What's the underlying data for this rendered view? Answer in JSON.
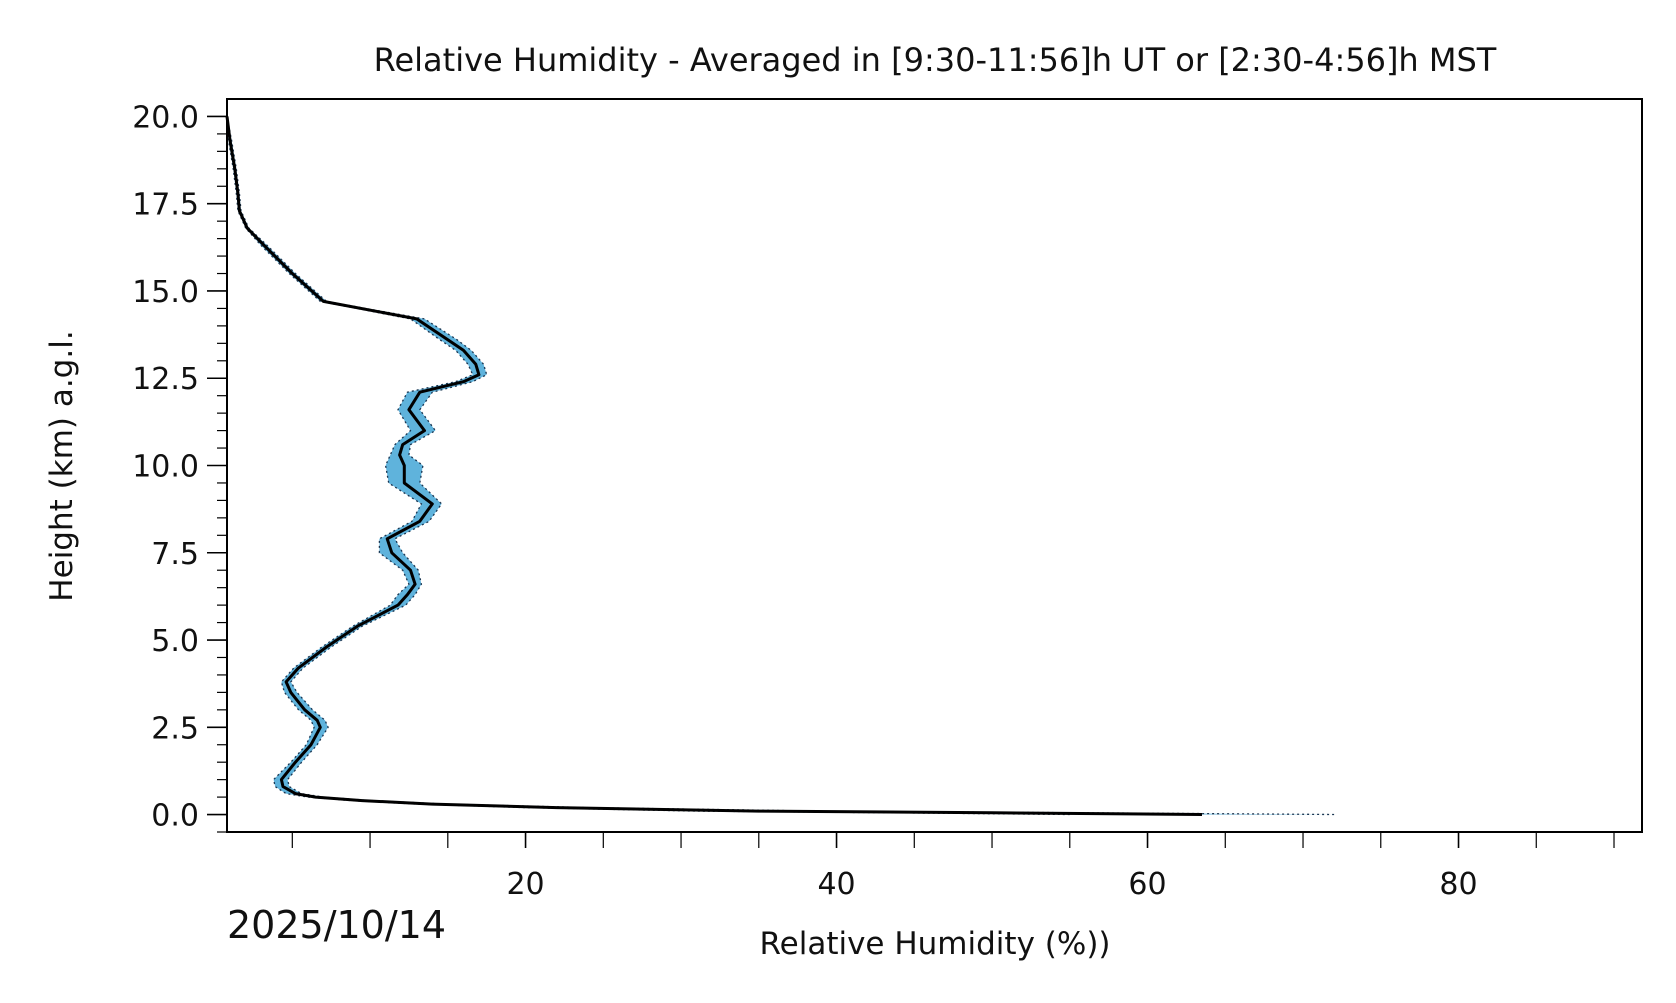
{
  "chart_data": {
    "type": "line",
    "title": "Relative Humidity - Averaged in [9:30-11:56]h UT or [2:30-4:56]h MST",
    "xlabel": "Relative Humidity (%))",
    "ylabel": "Height (km) a.g.l.",
    "date_label": "2025/10/14",
    "xlim": [
      0.8,
      91.8
    ],
    "ylim": [
      -0.5,
      20.5
    ],
    "xticks": [
      20,
      40,
      60,
      80
    ],
    "yticks": [
      0.0,
      2.5,
      5.0,
      7.5,
      10.0,
      12.5,
      15.0,
      17.5,
      20.0
    ],
    "grid": false,
    "colors": {
      "mean": "#000000",
      "band": "#5fb3dc",
      "band_edge": "#1a3550"
    },
    "series": [
      {
        "height": [
          0.0,
          0.05,
          0.1,
          0.2,
          0.3,
          0.4,
          0.5,
          0.6,
          0.8,
          1.0,
          1.5,
          2.0,
          2.5,
          2.7,
          3.0,
          3.5,
          3.8,
          4.2,
          4.8,
          5.4,
          6.0,
          6.3,
          6.6,
          7.0,
          7.5,
          7.9,
          8.4,
          8.9,
          9.5,
          10.0,
          10.3,
          10.6,
          11.0,
          11.6,
          12.1,
          12.4,
          12.6,
          12.9,
          13.3,
          13.6,
          14.2,
          14.7,
          15.5,
          16.3,
          16.8,
          17.3,
          17.8,
          18.5,
          19.3,
          20.0
        ],
        "mean": [
          63.5,
          50.0,
          35.0,
          22.0,
          14.0,
          9.5,
          6.5,
          5.2,
          4.4,
          4.3,
          5.2,
          6.2,
          6.8,
          6.6,
          5.8,
          4.9,
          4.6,
          5.4,
          7.2,
          9.2,
          11.8,
          12.4,
          12.9,
          12.6,
          11.4,
          11.1,
          13.2,
          14.0,
          12.2,
          12.2,
          11.9,
          12.1,
          13.5,
          12.5,
          13.2,
          16.0,
          17.0,
          16.8,
          16.0,
          15.0,
          13.0,
          7.0,
          5.0,
          3.2,
          2.1,
          1.6,
          1.5,
          1.3,
          1.0,
          0.8
        ],
        "lower": [
          55.0,
          44.0,
          31.0,
          20.0,
          13.0,
          8.8,
          6.0,
          4.6,
          3.9,
          3.8,
          4.9,
          5.9,
          6.4,
          6.2,
          5.4,
          4.5,
          4.3,
          5.1,
          6.9,
          8.9,
          11.3,
          11.8,
          12.5,
          12.1,
          10.6,
          10.6,
          12.7,
          13.3,
          11.2,
          11.0,
          11.3,
          11.6,
          12.6,
          11.8,
          12.4,
          15.5,
          16.6,
          16.3,
          15.5,
          14.5,
          12.6,
          6.8,
          4.8,
          3.0,
          2.0,
          1.5,
          1.4,
          1.2,
          0.9,
          0.8
        ],
        "upper": [
          72.0,
          56.0,
          39.0,
          24.0,
          15.0,
          10.2,
          7.0,
          5.6,
          4.8,
          4.7,
          5.6,
          6.6,
          7.3,
          7.1,
          6.3,
          5.3,
          4.9,
          5.7,
          7.5,
          9.5,
          12.3,
          12.9,
          13.3,
          13.1,
          12.1,
          11.6,
          13.8,
          14.6,
          13.2,
          13.4,
          12.5,
          12.6,
          14.2,
          13.2,
          14.0,
          16.6,
          17.5,
          17.3,
          16.5,
          15.6,
          13.5,
          7.2,
          5.2,
          3.4,
          2.2,
          1.7,
          1.6,
          1.4,
          1.1,
          0.8
        ]
      }
    ]
  }
}
